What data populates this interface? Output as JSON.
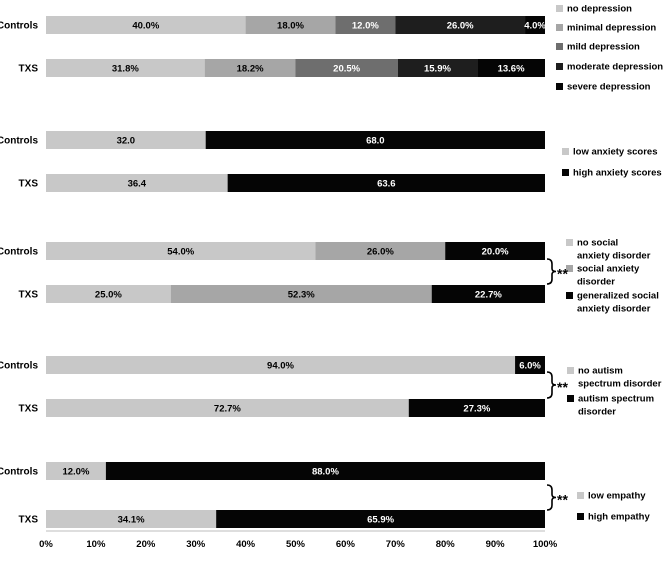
{
  "chart_data": {
    "type": "stacked-bar-horizontal",
    "x_axis": {
      "ticks": [
        "0%",
        "10%",
        "20%",
        "30%",
        "40%",
        "50%",
        "60%",
        "70%",
        "80%",
        "90%",
        "100%"
      ],
      "range": [
        0,
        100
      ]
    },
    "panels": [
      {
        "id": "depression",
        "series": [
          {
            "name": "no depression",
            "color": "#c8c8c8"
          },
          {
            "name": "minimal depression",
            "color": "#a6a6a6"
          },
          {
            "name": "mild depression",
            "color": "#6e6e6e"
          },
          {
            "name": "moderate depression",
            "color": "#1e1e1e"
          },
          {
            "name": "severe depression",
            "color": "#050505"
          }
        ],
        "rows": [
          {
            "group": "Controls",
            "values": [
              40.0,
              18.0,
              12.0,
              26.0,
              4.0
            ],
            "labels": [
              "40.0%",
              "18.0%",
              "12.0%",
              "26.0%",
              "4.0%"
            ]
          },
          {
            "group": "TXS",
            "values": [
              31.8,
              18.2,
              20.5,
              15.9,
              13.6
            ],
            "labels": [
              "31.8%",
              "18.2%",
              "20.5%",
              "15.9%",
              "13.6%"
            ]
          }
        ],
        "significance": ""
      },
      {
        "id": "anxiety",
        "series": [
          {
            "name": "low anxiety scores",
            "color": "#c8c8c8"
          },
          {
            "name": "high anxiety scores",
            "color": "#050505"
          }
        ],
        "rows": [
          {
            "group": "Controls",
            "values": [
              32.0,
              68.0
            ],
            "labels": [
              "32.0",
              "68.0"
            ]
          },
          {
            "group": "TXS",
            "values": [
              36.4,
              63.6
            ],
            "labels": [
              "36.4",
              "63.6"
            ]
          }
        ],
        "significance": ""
      },
      {
        "id": "social-anxiety",
        "series": [
          {
            "name": "no social anxiety disorder",
            "color": "#c8c8c8"
          },
          {
            "name": "social anxiety disorder",
            "color": "#a6a6a6"
          },
          {
            "name": "generalized social anxiety disorder",
            "color": "#050505"
          }
        ],
        "rows": [
          {
            "group": "Controls",
            "values": [
              54.0,
              26.0,
              20.0
            ],
            "labels": [
              "54.0%",
              "26.0%",
              "20.0%"
            ]
          },
          {
            "group": "TXS",
            "values": [
              25.0,
              52.3,
              22.7
            ],
            "labels": [
              "25.0%",
              "52.3%",
              "22.7%"
            ]
          }
        ],
        "significance": "**"
      },
      {
        "id": "autism",
        "series": [
          {
            "name": "no autism spectrum disorder",
            "color": "#c8c8c8"
          },
          {
            "name": "autism spectrum disorder",
            "color": "#050505"
          }
        ],
        "rows": [
          {
            "group": "Controls",
            "values": [
              94.0,
              6.0
            ],
            "labels": [
              "94.0%",
              "6.0%"
            ]
          },
          {
            "group": "TXS",
            "values": [
              72.7,
              27.3
            ],
            "labels": [
              "72.7%",
              "27.3%"
            ]
          }
        ],
        "significance": "**"
      },
      {
        "id": "empathy",
        "series": [
          {
            "name": "low empathy",
            "color": "#c8c8c8"
          },
          {
            "name": "high empathy",
            "color": "#050505"
          }
        ],
        "rows": [
          {
            "group": "Controls",
            "values": [
              12.0,
              88.0
            ],
            "labels": [
              "12.0%",
              "88.0%"
            ]
          },
          {
            "group": "TXS",
            "values": [
              34.1,
              65.9
            ],
            "labels": [
              "34.1%",
              "65.9%"
            ]
          }
        ],
        "significance": "**"
      }
    ]
  }
}
